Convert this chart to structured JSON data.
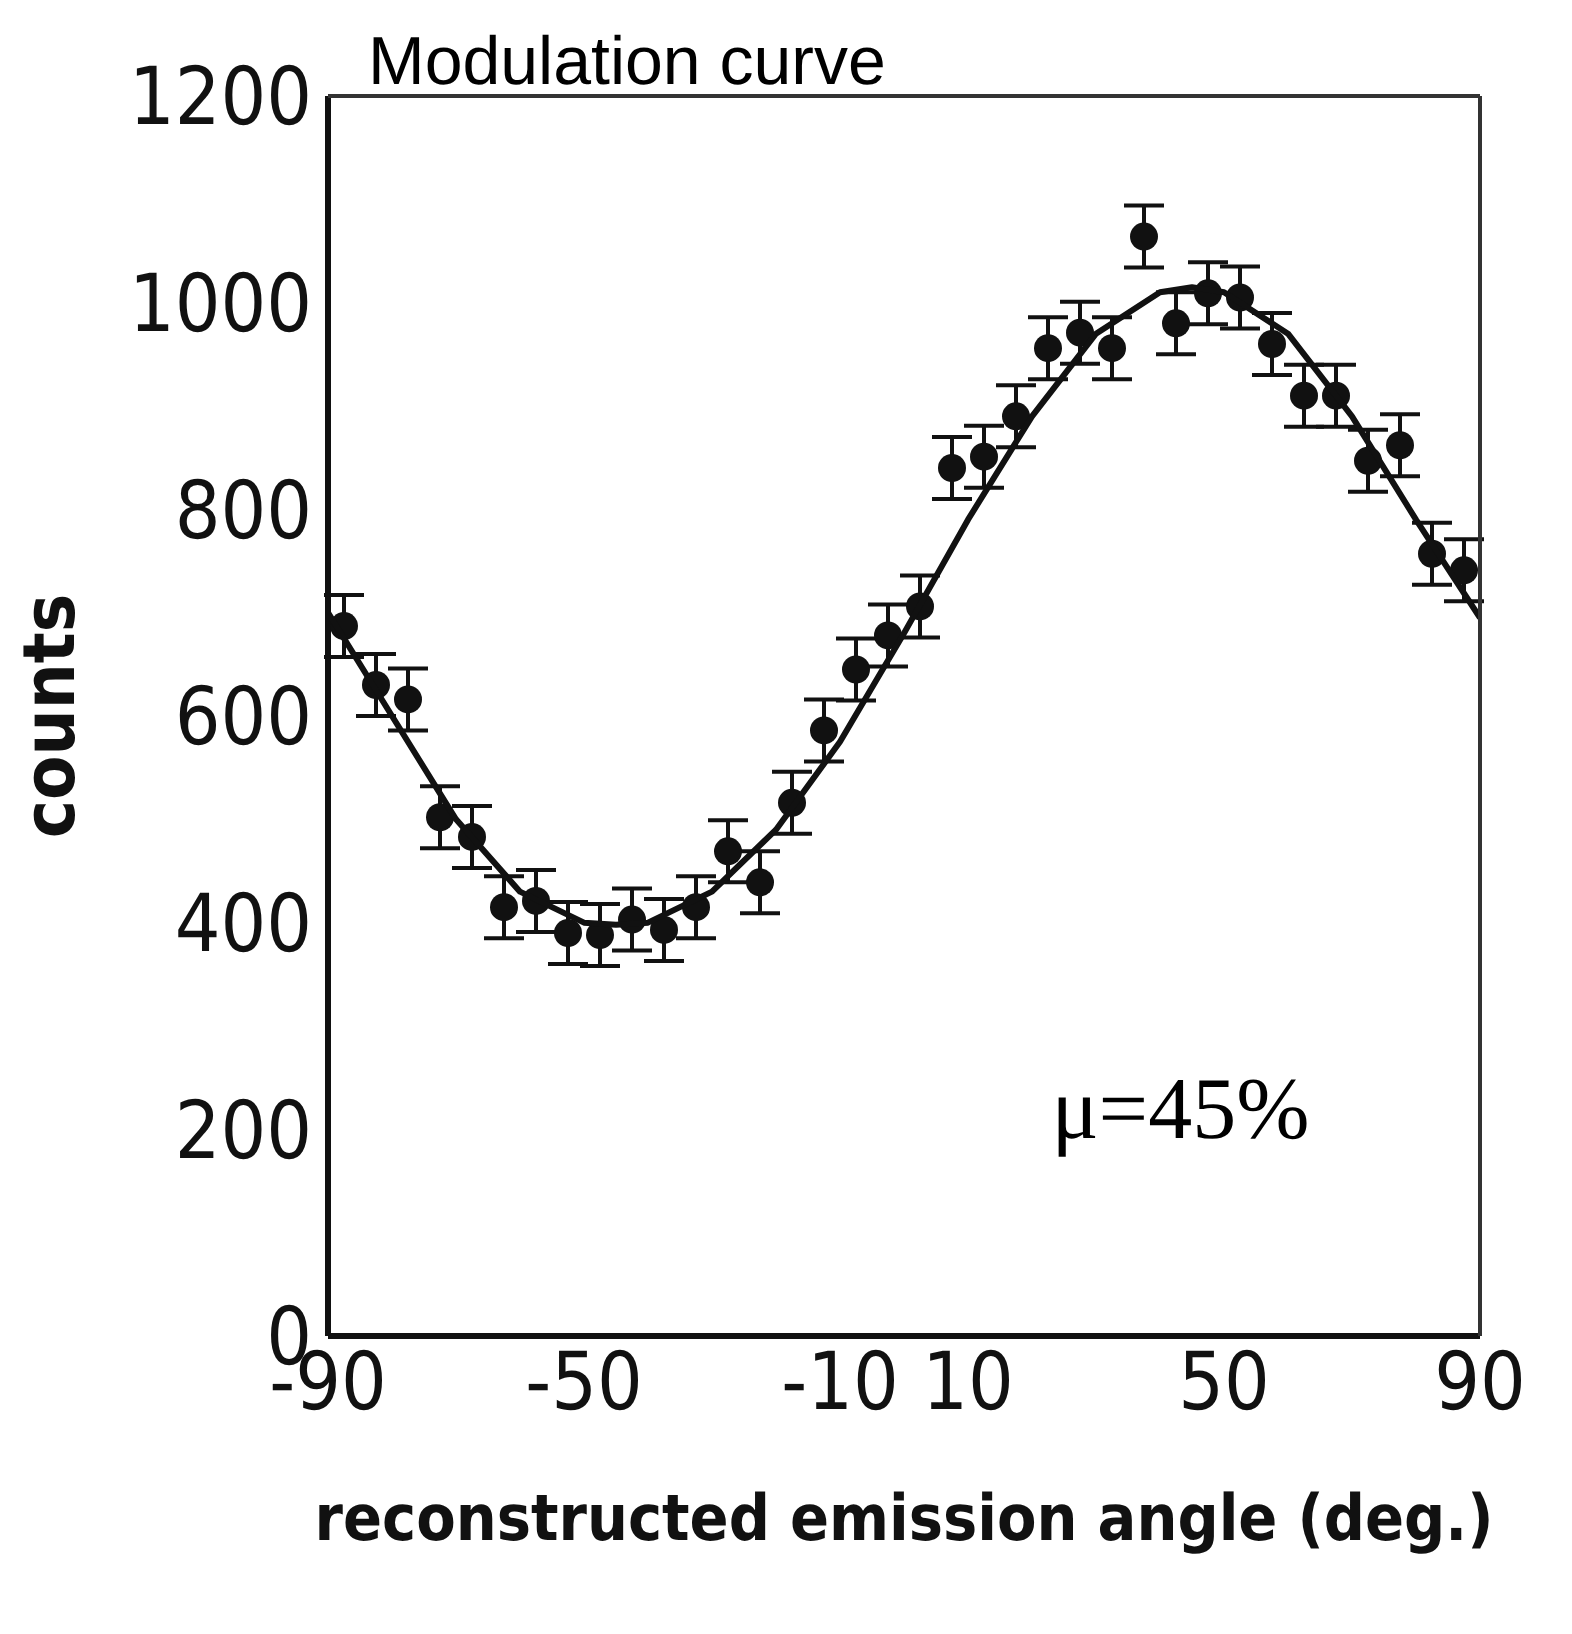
{
  "chart_data": {
    "type": "scatter",
    "title": "Modulation curve",
    "xlabel": "reconstructed emission angle (deg.)",
    "ylabel": "counts",
    "annotations": [
      "μ=45%"
    ],
    "xlim": [
      -90,
      90
    ],
    "xticks": [
      -90,
      -50,
      -10,
      10,
      50,
      90
    ],
    "ylim": [
      0,
      1200
    ],
    "yticks": [
      0,
      200,
      400,
      600,
      800,
      1000,
      1200
    ],
    "grid": false,
    "legend": false,
    "series": [
      {
        "color": "#111111",
        "marker": "circle",
        "x": [
          -87.5,
          -82.5,
          -77.5,
          -72.5,
          -67.5,
          -62.5,
          -57.5,
          -52.5,
          -47.5,
          -42.5,
          -37.5,
          -32.5,
          -27.5,
          -22.5,
          -17.5,
          -12.5,
          -7.5,
          -2.5,
          2.5,
          7.5,
          12.5,
          17.5,
          22.5,
          27.5,
          32.5,
          37.5,
          42.5,
          47.5,
          52.5,
          57.5,
          62.5,
          67.5,
          72.5,
          77.5,
          82.5,
          87.5
        ],
        "values": [
          687,
          630,
          616,
          502,
          483,
          415,
          421,
          390,
          388,
          403,
          393,
          415,
          469,
          439,
          516,
          586,
          645,
          678,
          706,
          840,
          851,
          890,
          956,
          971,
          956,
          1064,
          980,
          1009,
          1005,
          960,
          910,
          910,
          847,
          862,
          757,
          741
        ],
        "errors": [
          30,
          30,
          30,
          30,
          30,
          30,
          30,
          30,
          30,
          30,
          30,
          30,
          30,
          30,
          30,
          30,
          30,
          30,
          30,
          30,
          30,
          30,
          30,
          30,
          30,
          30,
          30,
          30,
          30,
          30,
          30,
          30,
          30,
          30,
          30,
          30
        ]
      },
      {
        "type": "line",
        "color": "#111111",
        "marker": "none",
        "line_style": "solid",
        "x": [
          -90,
          -80,
          -70,
          -60,
          -50,
          -45,
          -40,
          -30,
          -20,
          -10,
          0,
          10,
          20,
          30,
          40,
          45,
          50,
          60,
          70,
          80,
          90
        ],
        "values": [
          700,
          600,
          500,
          430,
          400,
          398,
          400,
          430,
          490,
          575,
          680,
          790,
          890,
          970,
          1010,
          1015,
          1010,
          970,
          890,
          790,
          695
        ]
      }
    ]
  }
}
